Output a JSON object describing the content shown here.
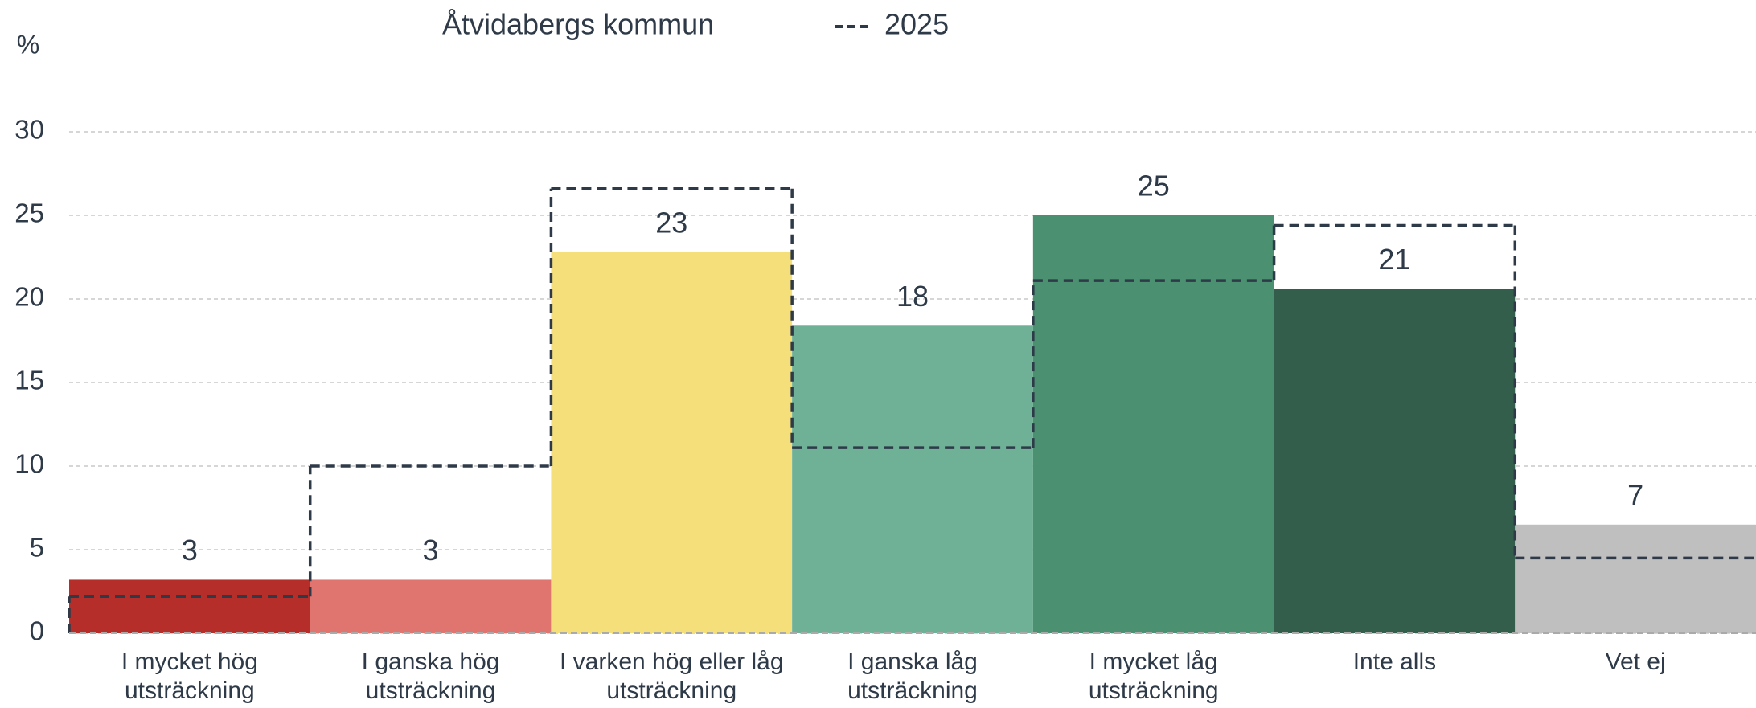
{
  "chart_data": {
    "type": "bar",
    "y_label": "%",
    "categories": [
      "I mycket hög utsträckning",
      "I ganska hög utsträckning",
      "I varken hög eller låg utsträckning",
      "I ganska låg utsträckning",
      "I mycket låg utsträckning",
      "Inte alls",
      "Vet ej"
    ],
    "series": [
      {
        "name": "Åtvidabergs kommun",
        "colors": [
          "#b52e2a",
          "#e07570",
          "#f5df7a",
          "#6fb196",
          "#4a9071",
          "#335e4c",
          "#bfbfbf"
        ],
        "values": [
          3.2,
          3.2,
          22.8,
          18.4,
          25.0,
          20.6,
          6.5
        ],
        "value_labels": [
          "3",
          "3",
          "23",
          "18",
          "25",
          "21",
          "7"
        ]
      },
      {
        "name": "2025",
        "color": "#2e3a48",
        "style": "dashed-step",
        "values": [
          2.2,
          10.0,
          26.6,
          11.1,
          21.1,
          24.4,
          4.5
        ]
      }
    ],
    "ylim": [
      0,
      30
    ],
    "yticks": [
      0,
      5,
      10,
      15,
      20,
      25,
      30
    ],
    "grid": true
  }
}
